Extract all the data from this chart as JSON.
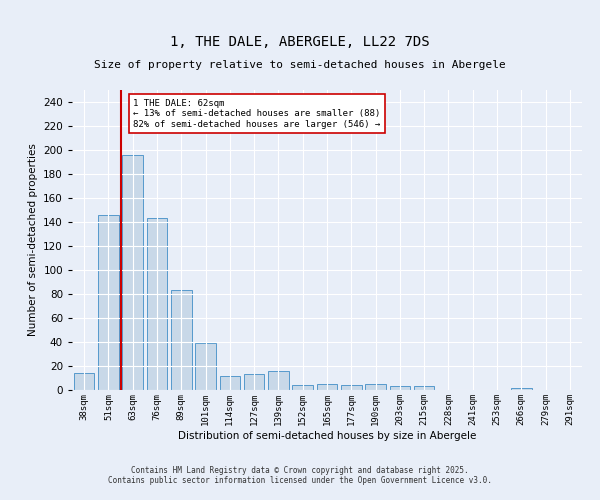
{
  "title": "1, THE DALE, ABERGELE, LL22 7DS",
  "subtitle": "Size of property relative to semi-detached houses in Abergele",
  "xlabel": "Distribution of semi-detached houses by size in Abergele",
  "ylabel": "Number of semi-detached properties",
  "categories": [
    "38sqm",
    "51sqm",
    "63sqm",
    "76sqm",
    "89sqm",
    "101sqm",
    "114sqm",
    "127sqm",
    "139sqm",
    "152sqm",
    "165sqm",
    "177sqm",
    "190sqm",
    "203sqm",
    "215sqm",
    "228sqm",
    "241sqm",
    "253sqm",
    "266sqm",
    "279sqm",
    "291sqm"
  ],
  "values": [
    14,
    146,
    196,
    143,
    83,
    39,
    12,
    13,
    16,
    4,
    5,
    4,
    5,
    3,
    3,
    0,
    0,
    0,
    2,
    0,
    0
  ],
  "bar_color": "#c8d8e8",
  "bar_edge_color": "#5599cc",
  "background_color": "#e8eef8",
  "grid_color": "#ffffff",
  "vline_x_index": 2,
  "vline_color": "#cc0000",
  "annotation_title": "1 THE DALE: 62sqm",
  "annotation_line1": "← 13% of semi-detached houses are smaller (88)",
  "annotation_line2": "82% of semi-detached houses are larger (546) →",
  "annotation_box_color": "#ffffff",
  "annotation_box_edge": "#cc0000",
  "ylim": [
    0,
    250
  ],
  "yticks": [
    0,
    20,
    40,
    60,
    80,
    100,
    120,
    140,
    160,
    180,
    200,
    220,
    240
  ],
  "footer_line1": "Contains HM Land Registry data © Crown copyright and database right 2025.",
  "footer_line2": "Contains public sector information licensed under the Open Government Licence v3.0."
}
